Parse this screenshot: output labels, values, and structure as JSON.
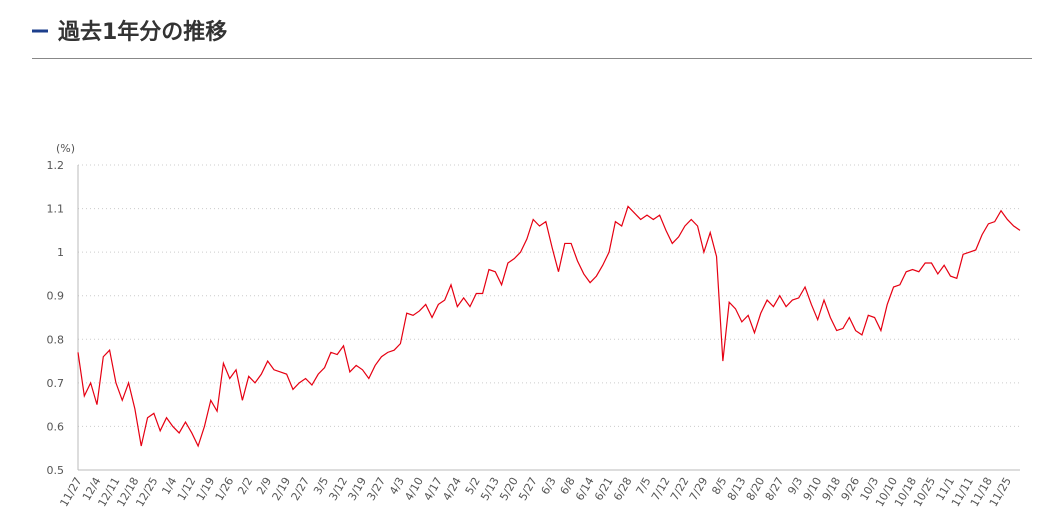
{
  "header": {
    "title": "過去1年分の推移"
  },
  "chart_data": {
    "type": "line",
    "y_label": "(%)",
    "categories": [
      "11/27",
      null,
      null,
      "12/4",
      null,
      null,
      "12/11",
      null,
      null,
      "12/18",
      null,
      null,
      "12/25",
      null,
      null,
      "1/4",
      null,
      null,
      "1/12",
      null,
      null,
      "1/19",
      null,
      null,
      "1/26",
      null,
      null,
      "2/2",
      null,
      null,
      "2/9",
      null,
      null,
      "2/19",
      null,
      null,
      "2/27",
      null,
      null,
      "3/5",
      null,
      null,
      "3/12",
      null,
      null,
      "3/19",
      null,
      null,
      "3/27",
      null,
      null,
      "4/3",
      null,
      null,
      "4/10",
      null,
      null,
      "4/17",
      null,
      null,
      "4/24",
      null,
      null,
      "5/2",
      null,
      null,
      "5/13",
      null,
      null,
      "5/20",
      null,
      null,
      "5/27",
      null,
      null,
      "6/3",
      null,
      null,
      "6/8",
      null,
      null,
      "6/14",
      null,
      null,
      "6/21",
      null,
      null,
      "6/28",
      null,
      null,
      "7/5",
      null,
      null,
      "7/12",
      null,
      null,
      "7/22",
      null,
      null,
      "7/29",
      null,
      null,
      "8/5",
      null,
      null,
      "8/13",
      null,
      null,
      "8/20",
      null,
      null,
      "8/27",
      null,
      null,
      "9/3",
      null,
      null,
      "9/10",
      null,
      null,
      "9/18",
      null,
      null,
      "9/26",
      null,
      null,
      "10/3",
      null,
      null,
      "10/10",
      null,
      null,
      "10/18",
      null,
      null,
      "10/25",
      null,
      null,
      "11/1",
      null,
      null,
      "11/11",
      null,
      null,
      "11/18",
      null,
      null,
      "11/25",
      null,
      null
    ],
    "series": [
      {
        "color": "#e60012",
        "values": [
          0.77,
          0.67,
          0.7,
          0.65,
          0.76,
          0.775,
          0.7,
          0.66,
          0.7,
          0.64,
          0.555,
          0.62,
          0.63,
          0.59,
          0.62,
          0.6,
          0.585,
          0.61,
          0.585,
          0.555,
          0.6,
          0.66,
          0.635,
          0.745,
          0.71,
          0.73,
          0.66,
          0.715,
          0.7,
          0.72,
          0.75,
          0.73,
          0.725,
          0.72,
          0.685,
          0.7,
          0.71,
          0.695,
          0.72,
          0.735,
          0.77,
          0.765,
          0.785,
          0.725,
          0.74,
          0.73,
          0.71,
          0.74,
          0.76,
          0.77,
          0.775,
          0.79,
          0.86,
          0.855,
          0.865,
          0.88,
          0.85,
          0.88,
          0.89,
          0.925,
          0.875,
          0.895,
          0.875,
          0.905,
          0.905,
          0.96,
          0.955,
          0.925,
          0.975,
          0.985,
          1.0,
          1.03,
          1.075,
          1.06,
          1.07,
          1.01,
          0.955,
          1.02,
          1.02,
          0.98,
          0.95,
          0.93,
          0.945,
          0.97,
          1.0,
          1.07,
          1.06,
          1.105,
          1.09,
          1.075,
          1.085,
          1.075,
          1.085,
          1.05,
          1.02,
          1.035,
          1.06,
          1.075,
          1.06,
          1.0,
          1.045,
          0.99,
          0.75,
          0.885,
          0.87,
          0.84,
          0.855,
          0.815,
          0.86,
          0.89,
          0.875,
          0.9,
          0.875,
          0.89,
          0.895,
          0.92,
          0.88,
          0.845,
          0.89,
          0.85,
          0.82,
          0.825,
          0.85,
          0.82,
          0.81,
          0.855,
          0.85,
          0.82,
          0.88,
          0.92,
          0.925,
          0.955,
          0.96,
          0.955,
          0.975,
          0.975,
          0.95,
          0.97,
          0.945,
          0.94,
          0.995,
          1.0,
          1.005,
          1.04,
          1.065,
          1.07,
          1.095,
          1.075,
          1.06,
          1.05
        ]
      }
    ],
    "ylim": [
      0.5,
      1.2
    ],
    "yticks": [
      0.5,
      0.6,
      0.7,
      0.8,
      0.9,
      1,
      1.1,
      1.2
    ],
    "grid": true
  }
}
